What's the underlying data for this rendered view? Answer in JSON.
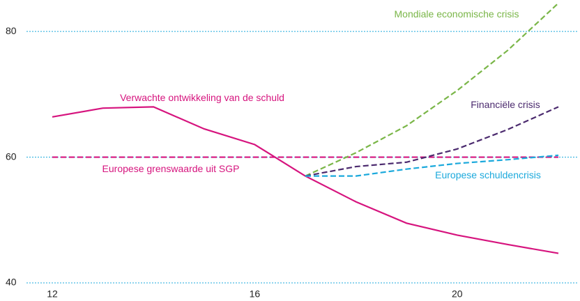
{
  "chart_data": {
    "type": "line",
    "x": [
      12,
      13,
      14,
      15,
      16,
      17,
      18,
      19,
      20,
      21,
      22
    ],
    "series": [
      {
        "name": "Verwachte ontwikkeling van de schuld",
        "color": "#d6147e",
        "dashed": false,
        "values": [
          66.4,
          67.8,
          68.0,
          64.5,
          62.0,
          57.0,
          52.9,
          49.5,
          47.6,
          46.1,
          44.7
        ]
      },
      {
        "name": "Europese grenswaarde uit SGP",
        "color": "#d6147e",
        "dashed": true,
        "values": [
          60,
          60,
          60,
          60,
          60,
          60,
          60,
          60,
          60,
          60,
          60
        ]
      },
      {
        "name": "Mondiale economische crisis",
        "color": "#7ab648",
        "dashed": true,
        "values": [
          null,
          null,
          null,
          null,
          null,
          57.0,
          60.7,
          65.0,
          70.6,
          77.0,
          84.5
        ]
      },
      {
        "name": "Financiële crisis",
        "color": "#4b2a6e",
        "dashed": true,
        "values": [
          null,
          null,
          null,
          null,
          null,
          57.0,
          58.5,
          59.2,
          61.3,
          64.4,
          68.0
        ]
      },
      {
        "name": "Europese schuldencrisis",
        "color": "#1ba9dc",
        "dashed": true,
        "values": [
          null,
          null,
          null,
          null,
          null,
          57.0,
          57.0,
          58.1,
          59.0,
          59.6,
          60.3
        ]
      }
    ],
    "xlim": [
      12,
      22
    ],
    "xticks": [
      12,
      16,
      20
    ],
    "ylim": [
      40,
      85
    ],
    "yticks": [
      40,
      60,
      80
    ],
    "grid": true,
    "grid_color": "#1ba9dc"
  }
}
